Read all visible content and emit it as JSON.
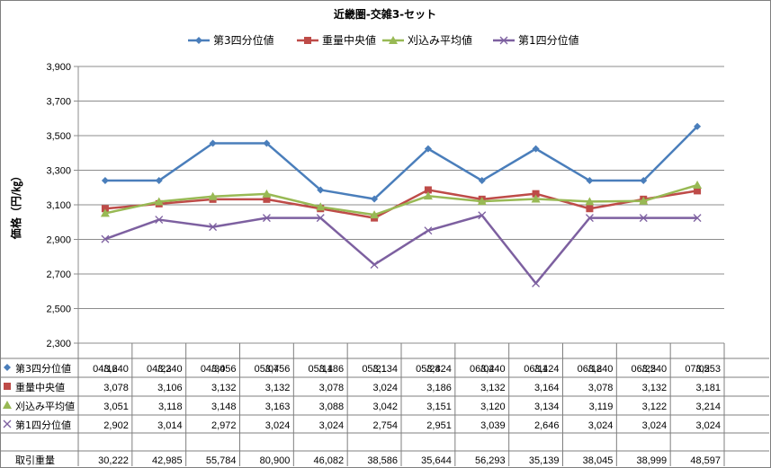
{
  "chart_data": {
    "type": "line",
    "title": "近畿圏-交雑3-セット",
    "ylabel": "価格（円/㎏）",
    "ylim": [
      2300,
      3900
    ],
    "yticks": [
      "2,300",
      "2,500",
      "2,700",
      "2,900",
      "3,100",
      "3,300",
      "3,500",
      "3,700",
      "3,900"
    ],
    "categories": [
      "04/16",
      "04/23",
      "04/30",
      "05/07",
      "05/14",
      "05/21",
      "05/28",
      "06/04",
      "06/11",
      "06/18",
      "06/25",
      "07/02"
    ],
    "grid": true,
    "legend_position": "top",
    "series": [
      {
        "name": "第3四分位値",
        "color": "#4a7ebb",
        "marker": "diamond",
        "values": [
          3240,
          3240,
          3456,
          3456,
          3186,
          3134,
          3424,
          3240,
          3424,
          3240,
          3240,
          3553
        ],
        "labels": [
          "3,240",
          "3,240",
          "3,456",
          "3,456",
          "3,186",
          "3,134",
          "3,424",
          "3,240",
          "3,424",
          "3,240",
          "3,240",
          "3,553"
        ]
      },
      {
        "name": "重量中央値",
        "color": "#be4b48",
        "marker": "square",
        "values": [
          3078,
          3106,
          3132,
          3132,
          3078,
          3024,
          3186,
          3132,
          3164,
          3078,
          3132,
          3181
        ],
        "labels": [
          "3,078",
          "3,106",
          "3,132",
          "3,132",
          "3,078",
          "3,024",
          "3,186",
          "3,132",
          "3,164",
          "3,078",
          "3,132",
          "3,181"
        ]
      },
      {
        "name": "刈込み平均値",
        "color": "#98b954",
        "marker": "triangle",
        "values": [
          3051,
          3118,
          3148,
          3163,
          3088,
          3042,
          3151,
          3120,
          3134,
          3119,
          3122,
          3214
        ],
        "labels": [
          "3,051",
          "3,118",
          "3,148",
          "3,163",
          "3,088",
          "3,042",
          "3,151",
          "3,120",
          "3,134",
          "3,119",
          "3,122",
          "3,214"
        ]
      },
      {
        "name": "第1四分位値",
        "color": "#7d60a0",
        "marker": "x",
        "values": [
          2902,
          3014,
          2972,
          3024,
          3024,
          2754,
          2951,
          3039,
          2646,
          3024,
          3024,
          3024
        ],
        "labels": [
          "2,902",
          "3,014",
          "2,972",
          "3,024",
          "3,024",
          "2,754",
          "2,951",
          "3,039",
          "2,646",
          "3,024",
          "3,024",
          "3,024"
        ]
      }
    ],
    "table_extra_row": {
      "name": "取引重量",
      "labels": [
        "30,222",
        "42,985",
        "55,784",
        "80,900",
        "46,082",
        "38,586",
        "35,644",
        "56,293",
        "35,139",
        "38,045",
        "38,999",
        "48,597"
      ]
    }
  }
}
